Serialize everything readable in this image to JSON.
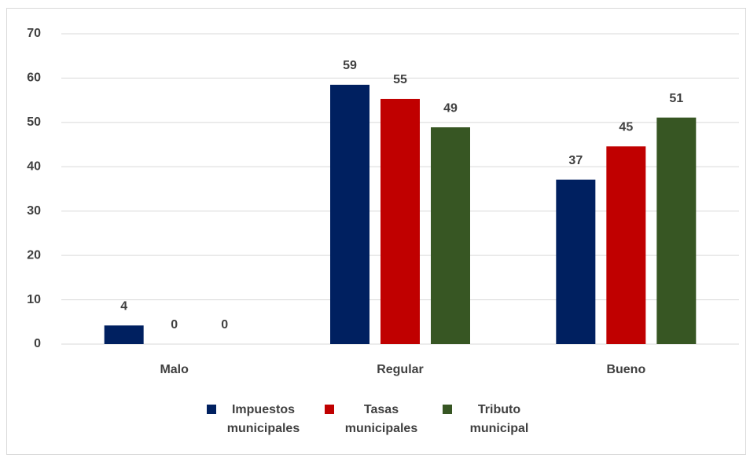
{
  "chart_data": {
    "type": "bar",
    "categories": [
      "Malo",
      "Regular",
      "Bueno"
    ],
    "series": [
      {
        "name": "Impuestos municipales",
        "color": "#002060",
        "values": [
          4.2,
          58.5,
          37.1
        ],
        "value_labels": [
          "4",
          "59",
          "37"
        ]
      },
      {
        "name": "Tasas municipales",
        "color": "#c00000",
        "values": [
          0,
          55.3,
          44.6
        ],
        "value_labels": [
          "0",
          "55",
          "45"
        ]
      },
      {
        "name": "Tributo municipal",
        "color": "#375623",
        "values": [
          0,
          48.9,
          51.1
        ],
        "value_labels": [
          "0",
          "49",
          "51"
        ]
      }
    ],
    "ylim": [
      0,
      70
    ],
    "yticks": [
      0,
      10,
      20,
      30,
      40,
      50,
      60,
      70
    ],
    "grid": true,
    "legend": "bottom"
  }
}
